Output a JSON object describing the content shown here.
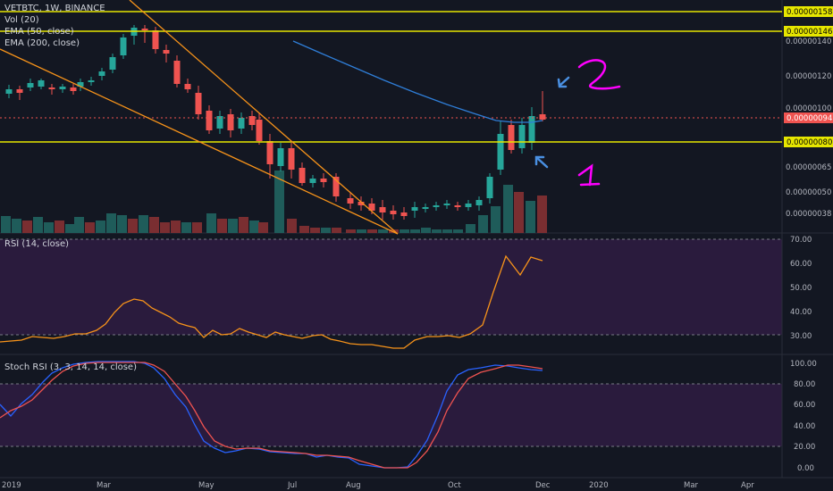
{
  "header": {
    "symbol_line": "VETBTC, 1W, BINANCE",
    "vol_label": "Vol (20)",
    "ema50_label": "EMA (50, close)",
    "ema200_label": "EMA (200, close)"
  },
  "rsi_pane": {
    "label": "RSI (14, close)",
    "ticks": [
      "70.00",
      "60.00",
      "50.00",
      "40.00",
      "30.00"
    ]
  },
  "stoch_pane": {
    "label": "Stoch RSI (3, 3, 14, 14, close)",
    "ticks": [
      "100.00",
      "80.00",
      "60.00",
      "40.00",
      "20.00",
      "0.00"
    ]
  },
  "price_axis": {
    "ticks": [
      "0.00000140",
      "0.00000120",
      "0.00000100",
      "0.00000065",
      "0.00000050",
      "0.00000038"
    ],
    "badges": [
      {
        "text": "0.00000158",
        "style": "yellow"
      },
      {
        "text": "0.00000146",
        "style": "yellow"
      },
      {
        "text": "0.00000094",
        "style": "red"
      },
      {
        "text": "0.00000080",
        "style": "yellow"
      }
    ]
  },
  "time_axis": [
    "2019",
    "Mar",
    "May",
    "Jul",
    "Aug",
    "Oct",
    "Dec",
    "2020",
    "Mar",
    "Apr"
  ],
  "annotations": {
    "one": "1",
    "two": "2"
  },
  "colors": {
    "bg": "#131722",
    "up": "#26a69a",
    "down": "#ef5350",
    "yellow": "#e6e600",
    "orange": "#f7931a",
    "ema": "#2962ff",
    "magenta": "#ff00ff",
    "arrow_blue": "#4a90e2"
  }
}
